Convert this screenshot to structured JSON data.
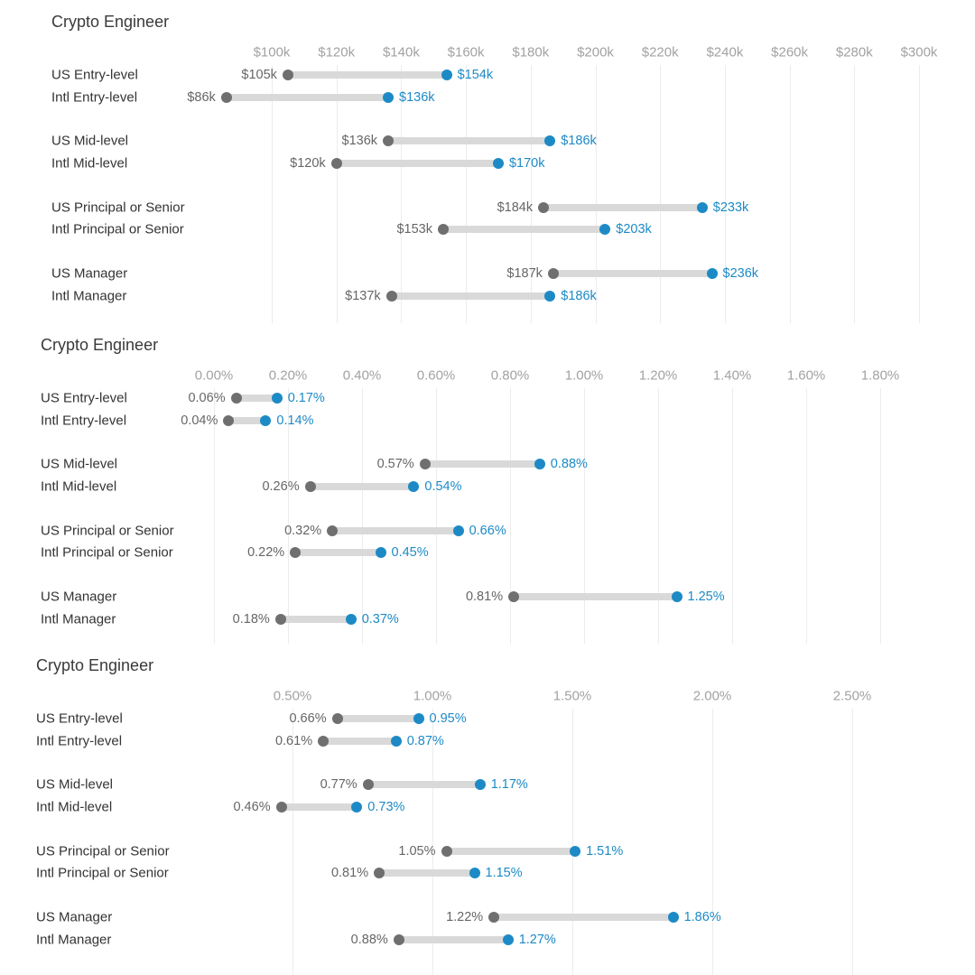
{
  "colors": {
    "accent_blue": "#1d8ac6",
    "dot_gray": "#6f6f6f",
    "bar_gray": "#d9d9d9",
    "axis_text": "#a2a2a2",
    "label_text": "#333333",
    "value_text": "#666666",
    "title_text": "#3a3a3a",
    "gridline": "#ececec"
  },
  "chart_data": [
    {
      "type": "dumbbell",
      "title": "Crypto Engineer",
      "xlim": [
        100,
        300
      ],
      "grid": true,
      "axis": {
        "ticks": [
          {
            "label": "$100k",
            "value": 100
          },
          {
            "label": "$120k",
            "value": 120
          },
          {
            "label": "$140k",
            "value": 140
          },
          {
            "label": "$160k",
            "value": 160
          },
          {
            "label": "$180k",
            "value": 180
          },
          {
            "label": "$200k",
            "value": 200
          },
          {
            "label": "$220k",
            "value": 220
          },
          {
            "label": "$240k",
            "value": 240
          },
          {
            "label": "$260k",
            "value": 260
          },
          {
            "label": "$280k",
            "value": 280
          },
          {
            "label": "$300k",
            "value": 300
          }
        ]
      },
      "rows": [
        {
          "label": "US Entry-level",
          "start": 105,
          "end": 154,
          "start_label": "$105k",
          "end_label": "$154k"
        },
        {
          "label": "Intl Entry-level",
          "start": 86,
          "end": 136,
          "start_label": "$86k",
          "end_label": "$136k"
        },
        {
          "label": "US Mid-level",
          "start": 136,
          "end": 186,
          "start_label": "$136k",
          "end_label": "$186k"
        },
        {
          "label": "Intl Mid-level",
          "start": 120,
          "end": 170,
          "start_label": "$120k",
          "end_label": "$170k"
        },
        {
          "label": "US Principal or Senior",
          "start": 184,
          "end": 233,
          "start_label": "$184k",
          "end_label": "$233k"
        },
        {
          "label": "Intl Principal or Senior",
          "start": 153,
          "end": 203,
          "start_label": "$153k",
          "end_label": "$203k"
        },
        {
          "label": "US Manager",
          "start": 187,
          "end": 236,
          "start_label": "$187k",
          "end_label": "$236k"
        },
        {
          "label": "Intl Manager",
          "start": 137,
          "end": 186,
          "start_label": "$137k",
          "end_label": "$186k"
        }
      ]
    },
    {
      "type": "dumbbell",
      "title": "Crypto Engineer",
      "xlim": [
        0.0,
        1.8
      ],
      "grid": true,
      "axis": {
        "ticks": [
          {
            "label": "0.00%",
            "value": 0.0
          },
          {
            "label": "0.20%",
            "value": 0.2
          },
          {
            "label": "0.40%",
            "value": 0.4
          },
          {
            "label": "0.60%",
            "value": 0.6
          },
          {
            "label": "0.80%",
            "value": 0.8
          },
          {
            "label": "1.00%",
            "value": 1.0
          },
          {
            "label": "1.20%",
            "value": 1.2
          },
          {
            "label": "1.40%",
            "value": 1.4
          },
          {
            "label": "1.60%",
            "value": 1.6
          },
          {
            "label": "1.80%",
            "value": 1.8
          }
        ]
      },
      "rows": [
        {
          "label": "US Entry-level",
          "start": 0.06,
          "end": 0.17,
          "start_label": "0.06%",
          "end_label": "0.17%"
        },
        {
          "label": "Intl Entry-level",
          "start": 0.04,
          "end": 0.14,
          "start_label": "0.04%",
          "end_label": "0.14%"
        },
        {
          "label": "US Mid-level",
          "start": 0.57,
          "end": 0.88,
          "start_label": "0.57%",
          "end_label": "0.88%"
        },
        {
          "label": "Intl Mid-level",
          "start": 0.26,
          "end": 0.54,
          "start_label": "0.26%",
          "end_label": "0.54%"
        },
        {
          "label": "US Principal or Senior",
          "start": 0.32,
          "end": 0.66,
          "start_label": "0.32%",
          "end_label": "0.66%"
        },
        {
          "label": "Intl Principal or Senior",
          "start": 0.22,
          "end": 0.45,
          "start_label": "0.22%",
          "end_label": "0.45%"
        },
        {
          "label": "US Manager",
          "start": 0.81,
          "end": 1.25,
          "start_label": "0.81%",
          "end_label": "1.25%"
        },
        {
          "label": "Intl Manager",
          "start": 0.18,
          "end": 0.37,
          "start_label": "0.18%",
          "end_label": "0.37%"
        }
      ]
    },
    {
      "type": "dumbbell",
      "title": "Crypto Engineer",
      "xlim": [
        0.5,
        2.5
      ],
      "grid": true,
      "axis": {
        "ticks": [
          {
            "label": "0.50%",
            "value": 0.5
          },
          {
            "label": "1.00%",
            "value": 1.0
          },
          {
            "label": "1.50%",
            "value": 1.5
          },
          {
            "label": "2.00%",
            "value": 2.0
          },
          {
            "label": "2.50%",
            "value": 2.5
          }
        ]
      },
      "rows": [
        {
          "label": "US Entry-level",
          "start": 0.66,
          "end": 0.95,
          "start_label": "0.66%",
          "end_label": "0.95%"
        },
        {
          "label": "Intl Entry-level",
          "start": 0.61,
          "end": 0.87,
          "start_label": "0.61%",
          "end_label": "0.87%"
        },
        {
          "label": "US Mid-level",
          "start": 0.77,
          "end": 1.17,
          "start_label": "0.77%",
          "end_label": "1.17%"
        },
        {
          "label": "Intl Mid-level",
          "start": 0.46,
          "end": 0.73,
          "start_label": "0.46%",
          "end_label": "0.73%"
        },
        {
          "label": "US Principal or Senior",
          "start": 1.05,
          "end": 1.51,
          "start_label": "1.05%",
          "end_label": "1.51%"
        },
        {
          "label": "Intl Principal or Senior",
          "start": 0.81,
          "end": 1.15,
          "start_label": "0.81%",
          "end_label": "1.15%"
        },
        {
          "label": "US Manager",
          "start": 1.22,
          "end": 1.86,
          "start_label": "1.22%",
          "end_label": "1.86%"
        },
        {
          "label": "Intl Manager",
          "start": 0.88,
          "end": 1.27,
          "start_label": "0.88%",
          "end_label": "1.27%"
        }
      ]
    }
  ]
}
